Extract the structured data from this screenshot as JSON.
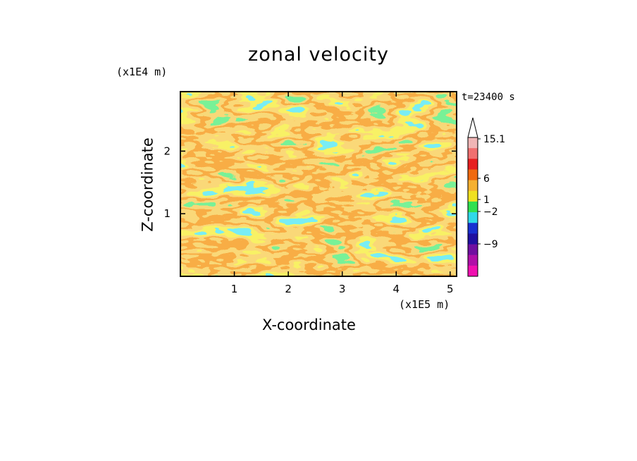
{
  "chart_data": {
    "type": "heatmap",
    "title": "zonal velocity",
    "xlabel": "X-coordinate",
    "ylabel": "Z-coordinate",
    "x_unit_label": "(x1E5 m)",
    "y_unit_label": "(x1E4 m)",
    "time_label": "t=23400 s",
    "xlim": [
      0,
      5.12
    ],
    "ylim": [
      0,
      2.95
    ],
    "x_ticks": [
      1,
      2,
      3,
      4,
      5
    ],
    "y_ticks": [
      1,
      2
    ],
    "colorbar": {
      "labels": [
        {
          "value": 15.1,
          "text": "15.1"
        },
        {
          "value": 6,
          "text": "6"
        },
        {
          "value": 1,
          "text": "1"
        },
        {
          "value": -2,
          "text": "−2"
        },
        {
          "value": -9,
          "text": "−9"
        }
      ],
      "levels": [
        {
          "color": "#f0b6b6"
        },
        {
          "color": "#f07070"
        },
        {
          "color": "#e62020"
        },
        {
          "color": "#f06a10"
        },
        {
          "color": "#f5b030"
        },
        {
          "color": "#f0e020"
        },
        {
          "color": "#30e050"
        },
        {
          "color": "#30d8e8"
        },
        {
          "color": "#1830d0"
        },
        {
          "color": "#2010a0"
        },
        {
          "color": "#7010a0"
        },
        {
          "color": "#b010a8"
        },
        {
          "color": "#f010b0"
        }
      ]
    }
  }
}
